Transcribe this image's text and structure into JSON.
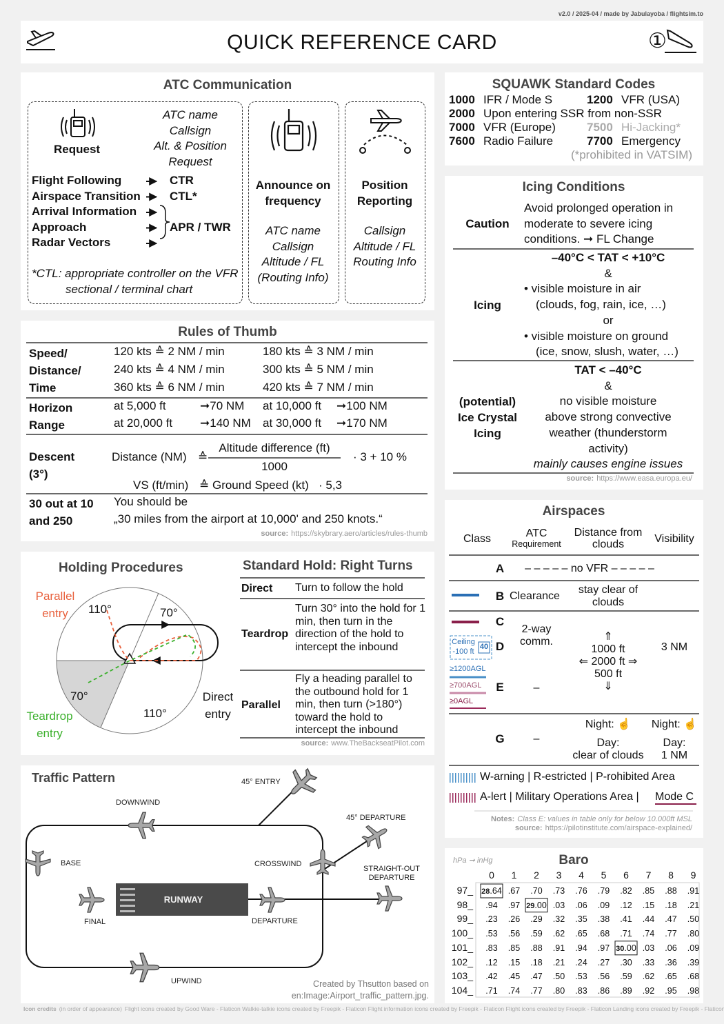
{
  "header": {
    "credit": "v2.0 / 2025-04 / made by Jabulayoba / flightsim.to",
    "title": "QUICK REFERENCE CARD",
    "page": "①"
  },
  "atc": {
    "title": "ATC Communication",
    "request": {
      "label": "Request",
      "items": [
        "ATC name",
        "Callsign",
        "Alt. & Position",
        "Request"
      ]
    },
    "routes": [
      {
        "from": "Flight Following",
        "to": "CTR"
      },
      {
        "from": "Airspace Transition",
        "to": "CTL*"
      },
      {
        "from": "Arrival Information"
      },
      {
        "from": "Approach"
      },
      {
        "from": "Radar Vectors"
      }
    ],
    "grouped_to": "APR / TWR",
    "note": "*CTL: appropriate controller on the VFR sectional / terminal chart",
    "announce": {
      "label": "Announce on frequency",
      "items": [
        "ATC name",
        "Callsign",
        "Altitude / FL",
        "(Routing Info)"
      ]
    },
    "position": {
      "label": "Position Reporting",
      "items": [
        "Callsign",
        "Altitude / FL",
        "Routing Info"
      ]
    }
  },
  "rules_of_thumb": {
    "title": "Rules of Thumb",
    "speed": {
      "label": "Speed/ Distance/ Time",
      "cells": [
        [
          "120 kts ≙ 2 NM / min",
          "180 kts ≙ 3 NM / min"
        ],
        [
          "240 kts ≙ 4 NM / min",
          "300 kts ≙ 5 NM / min"
        ],
        [
          "360 kts ≙ 6 NM / min",
          "420 kts ≙ 7 NM / min"
        ]
      ]
    },
    "horizon": {
      "label": "Horizon Range",
      "cells": [
        [
          "at 5,000 ft",
          "➞70 NM",
          "at 10,000 ft",
          "➞100 NM"
        ],
        [
          "at 20,000 ft",
          "➞140 NM",
          "at 30,000 ft",
          "➞170 NM"
        ]
      ]
    },
    "descent": {
      "label": "Descent (3°)",
      "distance": "Distance (NM)",
      "equals": "≙",
      "numerator": "Altitude difference (ft)",
      "denominator": "1000",
      "factor": "· 3 + 10 %",
      "vs": "VS (ft/min)",
      "vs_equals": "≙ Ground Speed (kt)",
      "vs_factor": "· 5,3"
    },
    "thirty": {
      "label": "30 out at 10 and 250",
      "text": [
        "You should be",
        "„30 miles from the airport at 10,000' and 250 knots.“"
      ]
    },
    "source_label": "source:",
    "source": "https://skybrary.aero/articles/rules-thumb"
  },
  "holding": {
    "title": "Holding Procedures",
    "parallel": "Parallel entry",
    "direct": "Direct entry",
    "teardrop": "Teardrop entry",
    "angles": [
      "110°",
      "70°",
      "70°",
      "110°"
    ],
    "hold_title": "Standard Hold: Right Turns",
    "rows": [
      [
        "Direct",
        "Turn to follow the hold"
      ],
      [
        "Teardrop",
        "Turn 30° into the hold for 1 min, then turn in the direction of the hold to intercept the inbound"
      ],
      [
        "Parallel",
        "Fly a heading parallel to the outbound hold for 1 min, then turn (>180°) toward the hold to intercept the inbound"
      ]
    ],
    "source_label": "source:",
    "source": "www.TheBackseatPilot.com"
  },
  "traffic": {
    "title": "Traffic Pattern",
    "entry_45": "45° ENTRY",
    "downwind": "DOWNWIND",
    "departure_45": "45° DEPARTURE",
    "base": "BASE",
    "crosswind": "CROSSWIND",
    "straight_out": "STRAIGHT-OUT DEPARTURE",
    "runway": "RUNWAY",
    "final": "FINAL",
    "departure": "DEPARTURE",
    "upwind": "UPWIND",
    "credit": "Created by Thsutton based on en:Image:Airport_traffic_pattern.jpg."
  },
  "squawk": {
    "title": "SQUAWK Standard Codes",
    "codes": [
      [
        "1000",
        "IFR / Mode S"
      ],
      [
        "1200",
        "VFR (USA)"
      ],
      [
        "2000",
        "Upon entering SSR from non-SSR"
      ],
      [
        "7000",
        "VFR (Europe)"
      ],
      [
        "7500",
        "Hi-Jacking*"
      ],
      [
        "7700",
        "Emergency"
      ],
      [
        "7600",
        "Radio Failure"
      ]
    ],
    "note": "(*prohibited in VATSIM)"
  },
  "icing": {
    "title": "Icing Conditions",
    "rows": [
      {
        "label": "Caution",
        "lines": [
          "Avoid prolonged operation in",
          "moderate to severe icing",
          "conditions.  ➞ FL Change"
        ]
      },
      {
        "label": "Icing",
        "lines": [
          "–40°C < TAT < +10°C",
          "&",
          "• visible moisture in air",
          "(clouds, fog, rain, ice, …)",
          "or",
          "• visible moisture on ground",
          "(ice, snow, slush, water, …)"
        ]
      },
      {
        "label": "(potential) Ice Crystal Icing",
        "lines": [
          "TAT < –40°C",
          "&",
          "no visible moisture",
          "above strong convective",
          "weather (thunderstorm",
          "activity)",
          "mainly causes engine issues"
        ]
      }
    ],
    "source_label": "source:",
    "source": "https://www.easa.europa.eu/"
  },
  "airspaces": {
    "title": "Airspaces",
    "headers": {
      "class": "Class",
      "atc": "ATC",
      "atc_sub": "Requirement",
      "distance": "Distance from clouds",
      "visibility": "Visibility"
    },
    "classes": [
      "A",
      "B",
      "C",
      "D",
      "E",
      "G"
    ],
    "a_text": "– – – – – no VFR – – – – –",
    "b_atc": "Clearance",
    "b_distance": "stay clear of clouds",
    "cd_atc": "2-way comm.",
    "e_atc": "–",
    "g_atc": "–",
    "cde_distance": [
      "⇑",
      "1000 ft",
      "⇐ 2000 ft ⇒",
      "500 ft",
      "⇓"
    ],
    "cde_visibility": "3 NM",
    "g_distance": [
      "Night: ☝",
      "Day:",
      "clear of clouds"
    ],
    "g_visibility": [
      "Night: ☝",
      "Day:",
      "1 NM"
    ],
    "legend_ceiling": "Ceiling",
    "legend_ceiling_sub": "-100 ft",
    "legend_ceiling_num": "40",
    "legend_agl": [
      "≥1200AGL",
      "≥700AGL",
      "≥0AGL"
    ],
    "legend_lines": [
      "W-arning | R-estricted | P-rohibited Area",
      "A-lert | Military Operations Area |"
    ],
    "legend_mode_c": "Mode C",
    "notes_label": "Notes:",
    "notes": "Class E: values in table only for below 10.000ft MSL",
    "source_label": "source:",
    "source": "https://pilotinstitute.com/airspace-explained/"
  },
  "baro": {
    "title": "Baro",
    "unit": "hPa ➞ inHg",
    "columns": [
      "0",
      "1",
      "2",
      "3",
      "4",
      "5",
      "6",
      "7",
      "8",
      "9"
    ],
    "rows": [
      {
        "label": "97_",
        "values": [
          "28.64",
          ".67",
          ".70",
          ".73",
          ".76",
          ".79",
          ".82",
          ".85",
          ".88",
          ".91"
        ]
      },
      {
        "label": "98_",
        "values": [
          ".94",
          ".97",
          "29.00",
          ".03",
          ".06",
          ".09",
          ".12",
          ".15",
          ".18",
          ".21"
        ]
      },
      {
        "label": "99_",
        "values": [
          ".23",
          ".26",
          ".29",
          ".32",
          ".35",
          ".38",
          ".41",
          ".44",
          ".47",
          ".50"
        ]
      },
      {
        "label": "100_",
        "values": [
          ".53",
          ".56",
          ".59",
          ".62",
          ".65",
          ".68",
          ".71",
          ".74",
          ".77",
          ".80"
        ]
      },
      {
        "label": "101_",
        "values": [
          ".83",
          ".85",
          ".88",
          ".91",
          ".94",
          ".97",
          "30.00",
          ".03",
          ".06",
          ".09"
        ]
      },
      {
        "label": "102_",
        "values": [
          ".12",
          ".15",
          ".18",
          ".21",
          ".24",
          ".27",
          ".30",
          ".33",
          ".36",
          ".39"
        ]
      },
      {
        "label": "103_",
        "values": [
          ".42",
          ".45",
          ".47",
          ".50",
          ".53",
          ".56",
          ".59",
          ".62",
          ".65",
          ".68"
        ]
      },
      {
        "label": "104_",
        "values": [
          ".71",
          ".74",
          ".77",
          ".80",
          ".83",
          ".86",
          ".89",
          ".92",
          ".95",
          ".98"
        ]
      }
    ]
  },
  "footer": {
    "label": "Icon credits",
    "detail": "(in order of appearance)",
    "text": "Flight icons created by Good Ware - Flaticon Walkie-talkie icons created by Freepik - Flaticon Flight information icons created by Freepik - Flaticon Flight icons created by Freepik - Flaticon Landing icons created by Freepik - Flaticon"
  }
}
